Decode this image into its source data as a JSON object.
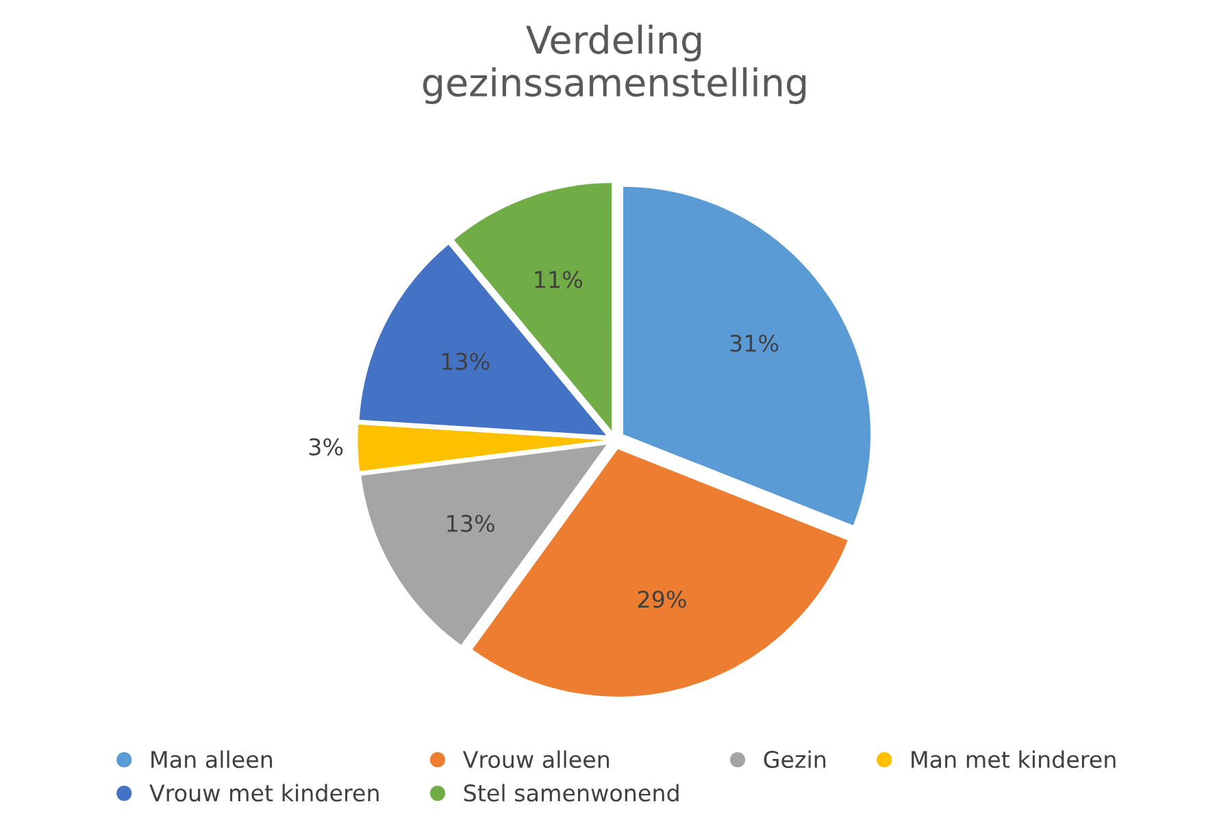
{
  "chart_data": {
    "type": "pie",
    "title": "Verdeling\ngezinssamenstelling",
    "categories": [
      "Man alleen",
      "Vrouw alleen",
      "Gezin",
      "Man met kinderen",
      "Vrouw met kinderen",
      "Stel samenwonend"
    ],
    "values": [
      31,
      29,
      13,
      3,
      13,
      11
    ],
    "colors": [
      "#5b9bd5",
      "#ed7d31",
      "#a5a5a5",
      "#ffc000",
      "#4472c4",
      "#70ad47"
    ],
    "value_labels": [
      "31%",
      "29%",
      "13%",
      "3%",
      "13%",
      "11%"
    ],
    "legend": "bottom"
  }
}
